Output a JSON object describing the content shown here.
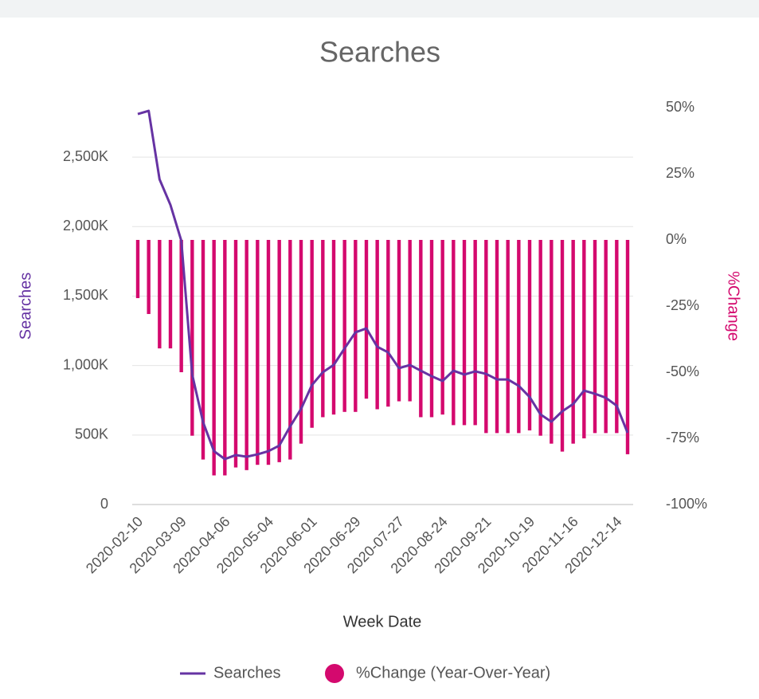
{
  "chart_data": {
    "type": "combo",
    "title": "Searches",
    "x_label": "Week Date",
    "y_label": "Searches",
    "y2_label": "%Change",
    "categories": [
      "2020-02-10",
      null,
      null,
      null,
      "2020-03-09",
      null,
      null,
      null,
      "2020-04-06",
      null,
      null,
      null,
      "2020-05-04",
      null,
      null,
      null,
      "2020-06-01",
      null,
      null,
      null,
      "2020-06-29",
      null,
      null,
      null,
      "2020-07-27",
      null,
      null,
      null,
      "2020-08-24",
      null,
      null,
      null,
      "2020-09-21",
      null,
      null,
      null,
      "2020-10-19",
      null,
      null,
      null,
      "2020-11-16",
      null,
      null,
      null,
      "2020-12-14",
      null
    ],
    "series": [
      {
        "name": "Searches",
        "type": "line",
        "color": "#6633a3",
        "values": [
          2810000,
          2833000,
          2340000,
          2156000,
          1898000,
          935000,
          592000,
          384000,
          327000,
          356000,
          344000,
          361000,
          384000,
          424000,
          562000,
          688000,
          860000,
          952000,
          1004000,
          1124000,
          1239000,
          1267000,
          1135000,
          1095000,
          981000,
          1004000,
          963000,
          923000,
          889000,
          963000,
          935000,
          958000,
          940000,
          900000,
          900000,
          854000,
          774000,
          648000,
          596000,
          671000,
          723000,
          820000,
          797000,
          768000,
          711000,
          516000
        ]
      },
      {
        "name": "%Change (Year-Over-Year)",
        "type": "bar",
        "axis": "y2",
        "color": "#d4096e",
        "values": [
          -22,
          -28,
          -41,
          -41,
          -50,
          -74,
          -83,
          -89,
          -89,
          -86,
          -87,
          -85,
          -85,
          -84,
          -83,
          -77,
          -71,
          -67,
          -66,
          -65,
          -65,
          -60,
          -64,
          -63,
          -61,
          -61,
          -67,
          -67,
          -66,
          -70,
          -70,
          -70,
          -73,
          -73,
          -73,
          -73,
          -72,
          -74,
          -77,
          -80,
          -77,
          -75,
          -73,
          -73,
          -73,
          -81
        ]
      }
    ],
    "ylim": [
      0,
      2856000
    ],
    "yticks": [
      0,
      {
        "value": 500000,
        "label": "500K"
      },
      {
        "value": 1000000,
        "label": "1,000K"
      },
      {
        "value": 1500000,
        "label": "1,500K"
      },
      {
        "value": 2000000,
        "label": "2,000K"
      },
      {
        "value": 2500000,
        "label": "2,500K"
      }
    ],
    "y2lim": [
      -100,
      50
    ],
    "y2ticks": [
      {
        "value": -100,
        "label": "-100%"
      },
      {
        "value": -75,
        "label": "-75%"
      },
      {
        "value": -50,
        "label": "-50%"
      },
      {
        "value": -25,
        "label": "-25%"
      },
      {
        "value": 0,
        "label": "0%"
      },
      {
        "value": 25,
        "label": "25%"
      },
      {
        "value": 50,
        "label": "50%"
      }
    ],
    "grid": true,
    "legend": "bottom"
  }
}
